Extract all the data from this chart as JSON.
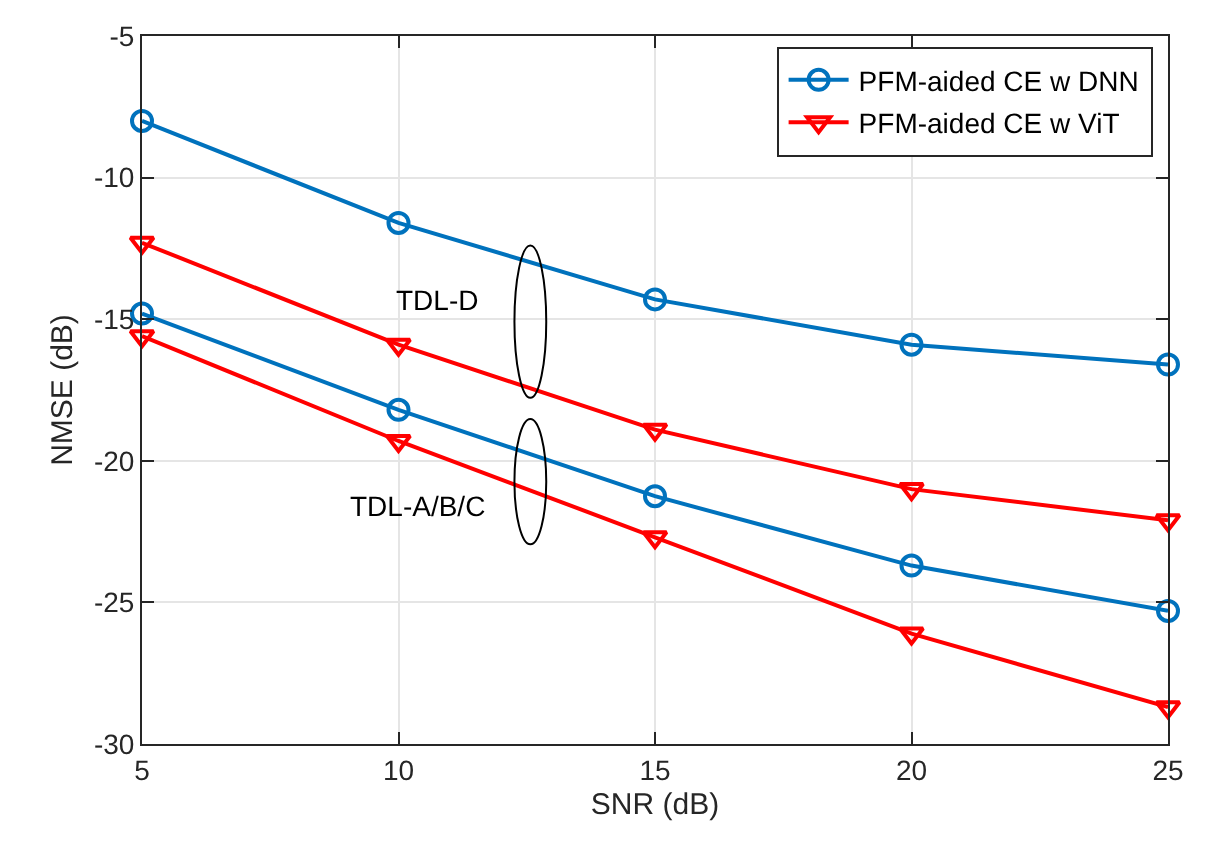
{
  "chart_data": {
    "type": "line",
    "xlabel": "SNR (dB)",
    "ylabel": "NMSE (dB)",
    "x": [
      5,
      10,
      15,
      20,
      25
    ],
    "series": [
      {
        "name": "PFM-aided CE w DNN",
        "color": "#0072bd",
        "marker": "circle",
        "values": [
          -8.0,
          -11.6,
          -14.3,
          -15.9,
          -16.6
        ]
      },
      {
        "name": "PFM-aided CE w ViT",
        "color": "#ff0000",
        "marker": "triangle",
        "values": [
          -12.3,
          -15.9,
          -18.9,
          -21.0,
          -22.1
        ]
      },
      {
        "color": "#0072bd",
        "marker": "circle",
        "values": [
          -14.8,
          -18.2,
          -21.25,
          -23.7,
          -25.3
        ]
      },
      {
        "color": "#ff0000",
        "marker": "triangle",
        "values": [
          -15.6,
          -19.3,
          -22.7,
          -26.1,
          -28.7
        ]
      }
    ],
    "xlim": [
      5,
      25
    ],
    "xticks": [
      5,
      10,
      15,
      20,
      25
    ],
    "ylim": [
      -30,
      -5
    ],
    "yticks": [
      -30,
      -25,
      -20,
      -15,
      -10,
      -5
    ],
    "annotations": [
      "TDL-D",
      "TDL-A/B/C"
    ],
    "grid": true,
    "legend": "top right",
    "line_style": "solid"
  }
}
